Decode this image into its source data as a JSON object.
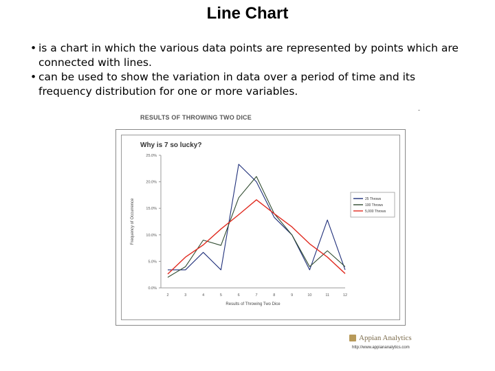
{
  "slide": {
    "title": "Line Chart",
    "bullets": [
      "is a chart in which the various data points are represented by points which are connected with lines.",
      "can be used to show the variation in data over a period of time and its frequency distribution for one or more variables."
    ],
    "bullet_glyph": "•",
    "corner_mark": "-"
  },
  "figure": {
    "heading": "RESULTS OF THROWING TWO DICE",
    "source_name": "Appian Analytics",
    "source_url": "http://www.appiananalytics.com"
  },
  "chart_data": {
    "type": "line",
    "title": "Why is 7 so lucky?",
    "xlabel": "Results of Throwing Two Dice",
    "ylabel": "Frequency of Occurrence",
    "x": [
      2,
      3,
      4,
      5,
      6,
      7,
      8,
      9,
      10,
      11,
      12
    ],
    "ylim": [
      0,
      25
    ],
    "yticks": [
      "0.0%",
      "5.0%",
      "10.0%",
      "15.0%",
      "20.0%",
      "25.0%"
    ],
    "ytick_values": [
      0,
      5,
      10,
      15,
      20,
      25
    ],
    "grid": false,
    "legend_position": "right",
    "series": [
      {
        "name": "25 Throws",
        "color": "#1f2f7a",
        "values": [
          3.4,
          3.4,
          6.7,
          3.4,
          23.3,
          20.0,
          13.3,
          10.0,
          3.4,
          12.8,
          3.4
        ]
      },
      {
        "name": "100 Throws",
        "color": "#2e4a2e",
        "values": [
          2.0,
          4.0,
          9.0,
          8.0,
          17.0,
          21.0,
          14.0,
          10.0,
          4.0,
          7.0,
          4.0
        ]
      },
      {
        "name": "5,000 Throws",
        "color": "#e02a1f",
        "values": [
          2.6,
          5.8,
          8.1,
          11.1,
          13.8,
          16.6,
          14.0,
          11.5,
          8.3,
          5.8,
          2.7
        ]
      }
    ]
  }
}
